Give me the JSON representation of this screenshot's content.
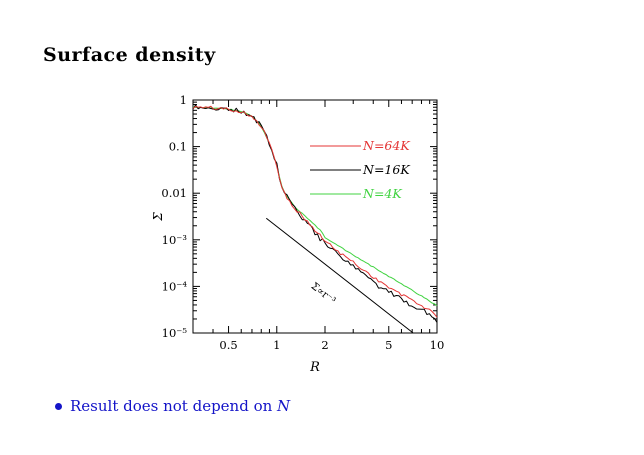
{
  "slide": {
    "title": "Surface density",
    "bullet": {
      "text": "Result does not depend on ",
      "math": "N"
    },
    "text_blue": "#1414c8"
  },
  "chart_data": {
    "type": "line",
    "title": "",
    "xlabel": "R",
    "ylabel": "Σ",
    "xscale": "log",
    "yscale": "log",
    "xlim": [
      0.3,
      10
    ],
    "ylim": [
      1e-05,
      1
    ],
    "grid": false,
    "frame_ticks": "inside-all-sides",
    "x_ticks": [
      {
        "value": 0.5,
        "label": "0.5"
      },
      {
        "value": 1,
        "label": "1"
      },
      {
        "value": 2,
        "label": "2"
      },
      {
        "value": 5,
        "label": "5"
      },
      {
        "value": 10,
        "label": "10"
      }
    ],
    "y_ticks": [
      {
        "value": 1,
        "label": "1"
      },
      {
        "value": 0.1,
        "label": "0.1"
      },
      {
        "value": 0.01,
        "label": "0.01"
      },
      {
        "value": 0.001,
        "label": "10⁻³"
      },
      {
        "value": 0.0001,
        "label": "10⁻⁴"
      },
      {
        "value": 1e-05,
        "label": "10⁻⁵"
      }
    ],
    "series": [
      {
        "name": "N=64K",
        "color": "#e43535",
        "noise_dex": 0.035,
        "seed": 101,
        "anchors": [
          [
            0.3,
            0.7
          ],
          [
            0.36,
            0.69
          ],
          [
            0.42,
            0.67
          ],
          [
            0.48,
            0.645
          ],
          [
            0.54,
            0.61
          ],
          [
            0.6,
            0.565
          ],
          [
            0.66,
            0.5
          ],
          [
            0.72,
            0.415
          ],
          [
            0.78,
            0.305
          ],
          [
            0.84,
            0.2
          ],
          [
            0.9,
            0.115
          ],
          [
            0.96,
            0.06
          ],
          [
            1.0,
            0.04
          ],
          [
            1.04,
            0.022
          ],
          [
            1.08,
            0.0135
          ],
          [
            1.14,
            0.009
          ],
          [
            1.22,
            0.0062
          ],
          [
            1.3,
            0.0047
          ],
          [
            1.4,
            0.0036
          ],
          [
            1.55,
            0.00245
          ],
          [
            1.7,
            0.0017
          ],
          [
            1.9,
            0.00115
          ],
          [
            2.1,
            0.00082
          ],
          [
            2.4,
            0.00056
          ],
          [
            2.7,
            0.000425
          ],
          [
            3.0,
            0.00033
          ],
          [
            3.4,
            0.00024
          ],
          [
            3.9,
            0.00017
          ],
          [
            4.5,
            0.00012
          ],
          [
            5.2,
            8.8e-05
          ],
          [
            6.0,
            6.6e-05
          ],
          [
            7.0,
            5.1e-05
          ],
          [
            8.2,
            3.7e-05
          ],
          [
            9.0,
            3e-05
          ],
          [
            10.0,
            2.3e-05
          ]
        ]
      },
      {
        "name": "N=16K",
        "color": "#000000",
        "noise_dex": 0.055,
        "seed": 202,
        "anchors": [
          [
            0.3,
            0.7
          ],
          [
            0.36,
            0.69
          ],
          [
            0.42,
            0.67
          ],
          [
            0.48,
            0.645
          ],
          [
            0.54,
            0.61
          ],
          [
            0.6,
            0.565
          ],
          [
            0.66,
            0.5
          ],
          [
            0.72,
            0.415
          ],
          [
            0.78,
            0.305
          ],
          [
            0.84,
            0.2
          ],
          [
            0.9,
            0.115
          ],
          [
            0.96,
            0.06
          ],
          [
            1.0,
            0.04
          ],
          [
            1.04,
            0.022
          ],
          [
            1.08,
            0.0135
          ],
          [
            1.14,
            0.009
          ],
          [
            1.22,
            0.0062
          ],
          [
            1.3,
            0.0047
          ],
          [
            1.4,
            0.0034
          ],
          [
            1.55,
            0.00225
          ],
          [
            1.7,
            0.0015
          ],
          [
            1.9,
            0.001
          ],
          [
            2.1,
            0.0007
          ],
          [
            2.4,
            0.00047
          ],
          [
            2.7,
            0.00035
          ],
          [
            3.0,
            0.000265
          ],
          [
            3.4,
            0.00019
          ],
          [
            3.9,
            0.00013
          ],
          [
            4.5,
            9.2e-05
          ],
          [
            5.2,
            6.9e-05
          ],
          [
            6.0,
            5.2e-05
          ],
          [
            7.0,
            4e-05
          ],
          [
            8.2,
            3e-05
          ],
          [
            9.0,
            2.5e-05
          ],
          [
            10.0,
            1.9e-05
          ]
        ]
      },
      {
        "name": "N=4K",
        "color": "#41d341",
        "noise_dex": 0.01,
        "seed": 303,
        "anchors": [
          [
            0.3,
            0.7
          ],
          [
            0.36,
            0.69
          ],
          [
            0.42,
            0.67
          ],
          [
            0.48,
            0.645
          ],
          [
            0.54,
            0.61
          ],
          [
            0.6,
            0.565
          ],
          [
            0.66,
            0.5
          ],
          [
            0.72,
            0.415
          ],
          [
            0.78,
            0.305
          ],
          [
            0.84,
            0.2
          ],
          [
            0.9,
            0.115
          ],
          [
            0.96,
            0.06
          ],
          [
            1.0,
            0.04
          ],
          [
            1.04,
            0.022
          ],
          [
            1.08,
            0.0135
          ],
          [
            1.14,
            0.0092
          ],
          [
            1.22,
            0.0066
          ],
          [
            1.3,
            0.0051
          ],
          [
            1.4,
            0.004
          ],
          [
            1.55,
            0.0029
          ],
          [
            1.7,
            0.00215
          ],
          [
            1.9,
            0.00155
          ],
          [
            2.0,
            0.0011
          ],
          [
            2.5,
            0.00069
          ],
          [
            3.0,
            0.00047
          ],
          [
            3.5,
            0.00034
          ],
          [
            4.0,
            0.00026
          ],
          [
            5.0,
            0.000165
          ],
          [
            6.0,
            0.000113
          ],
          [
            7.0,
            8.2e-05
          ],
          [
            8.0,
            6.2e-05
          ],
          [
            9.0,
            4.8e-05
          ],
          [
            10.0,
            3.9e-05
          ]
        ]
      }
    ],
    "reference_line": {
      "color": "#000000",
      "points": [
        [
          0.86,
          0.0029
        ],
        [
          7.1,
          1e-05
        ]
      ],
      "annotation": {
        "text": "Σ∝r⁻³",
        "R": 1.9,
        "sigma": 6.3e-05,
        "rotation_deg": 38.5
      }
    },
    "legend": {
      "position": "upper-right-inside",
      "entries": [
        {
          "label": "N=64K",
          "color": "#e43535"
        },
        {
          "label": "N=16K",
          "color": "#000000"
        },
        {
          "label": "N=4K",
          "color": "#41d341"
        }
      ]
    }
  }
}
